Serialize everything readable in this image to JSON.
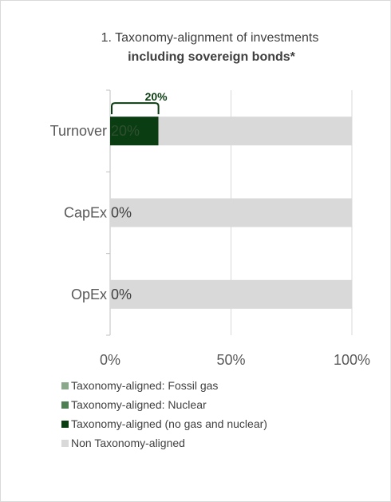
{
  "chart_data": {
    "type": "bar",
    "orientation": "horizontal",
    "stacked": true,
    "title": "1. Taxonomy-alignment of investments",
    "subtitle": "including sovereign bonds*",
    "categories": [
      "Turnover",
      "CapEx",
      "OpEx"
    ],
    "series": [
      {
        "name": "Taxonomy-aligned: Fossil gas",
        "color": "#8aa88a",
        "values": [
          0,
          0,
          0
        ]
      },
      {
        "name": "Taxonomy-aligned: Nuclear",
        "color": "#4e7f52",
        "values": [
          0,
          0,
          0
        ]
      },
      {
        "name": "Taxonomy-aligned (no gas and nuclear)",
        "color": "#0b3d12",
        "values": [
          20,
          0,
          0
        ]
      },
      {
        "name": "Non Taxonomy-aligned",
        "color": "#d9d9d9",
        "values": [
          80,
          100,
          100
        ]
      }
    ],
    "data_labels": [
      "20%",
      "0%",
      "0%"
    ],
    "bracket_label": "20%",
    "xlim": [
      0,
      100
    ],
    "x_ticks": [
      "0%",
      "50%",
      "100%"
    ],
    "gridlines": true,
    "legend_position": "bottom-left"
  }
}
